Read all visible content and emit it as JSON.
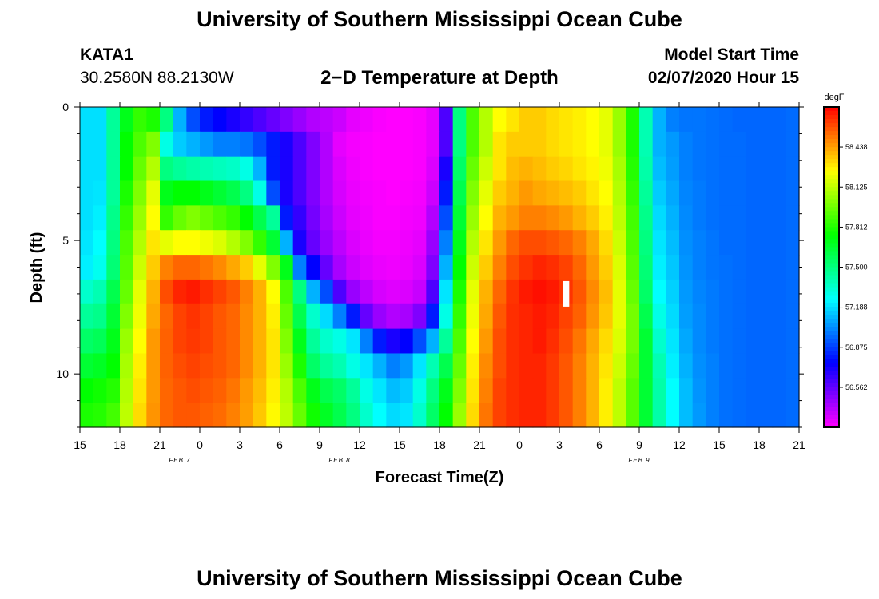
{
  "header": {
    "title": "University of Southern Mississippi Ocean Cube",
    "station_id": "KATA1",
    "station_coords": "30.2580N 88.2130W",
    "subtitle": "2−D Temperature at Depth",
    "model_start_label": "Model Start Time",
    "model_start_value": "02/07/2020 Hour 15"
  },
  "footer": {
    "title": "University of Southern Mississippi Ocean Cube"
  },
  "chart_data": {
    "type": "heatmap",
    "title": "2−D Temperature at Depth",
    "xlabel": "Forecast Time(Z)",
    "ylabel": "Depth (ft)",
    "x_tick_labels": [
      "15",
      "18",
      "21",
      "0",
      "3",
      "6",
      "9",
      "12",
      "15",
      "18",
      "21",
      "0",
      "3",
      "6",
      "9",
      "12",
      "15",
      "18",
      "21"
    ],
    "date_labels": [
      {
        "text": "FEB 7",
        "tick_index": 2.5
      },
      {
        "text": "FEB 8",
        "tick_index": 6.5
      },
      {
        "text": "FEB 9",
        "tick_index": 14
      }
    ],
    "x_range_hours": [
      0,
      54
    ],
    "y_ticks": [
      0,
      5,
      10
    ],
    "y_range_ft": [
      0,
      12
    ],
    "colorbar": {
      "unit": "degF",
      "min": 56.25,
      "max": 58.75,
      "tick_values": [
        58.438,
        58.125,
        57.812,
        57.5,
        57.188,
        56.875,
        56.562
      ],
      "tick_labels": [
        "58.438",
        "58.125",
        "57.812",
        "57.500",
        "57.188",
        "56.875",
        "56.562"
      ]
    },
    "annotation": {
      "type": "marker",
      "x_hours": 36.5,
      "depth_ft": 7.0,
      "color": "#ffffff"
    },
    "field_description": "Approximate temperature field (degF) sampled on a grid of forecast hours vs depth levels 0..12 ft",
    "series_hours": [
      0,
      1,
      2,
      3,
      4,
      5,
      6,
      7,
      8,
      9,
      10,
      11,
      12,
      13,
      14,
      15,
      16,
      17,
      18,
      19,
      20,
      21,
      22,
      23,
      24,
      25,
      26,
      27,
      28,
      29,
      30,
      31,
      32,
      33,
      34,
      35,
      36,
      37,
      38,
      39,
      40,
      41,
      42,
      43,
      44,
      45,
      46,
      47,
      48,
      49,
      50,
      51,
      52,
      53
    ],
    "depth_levels_ft": [
      0,
      1,
      2,
      3,
      4,
      5,
      6,
      7,
      8,
      9,
      10,
      11,
      12
    ],
    "values": [
      [
        57.19,
        57.19,
        57.45,
        57.7,
        57.85,
        57.8,
        57.5,
        57.1,
        56.9,
        56.8,
        56.75,
        56.7,
        56.65,
        56.6,
        56.55,
        56.5,
        56.45,
        56.4,
        56.38,
        56.35,
        56.3,
        56.28,
        56.26,
        56.25,
        56.25,
        56.26,
        56.3,
        56.6,
        57.5,
        57.9,
        58.1,
        58.25,
        58.3,
        58.35,
        58.35,
        58.32,
        58.3,
        58.28,
        58.25,
        58.2,
        58.05,
        57.8,
        57.4,
        57.1,
        57.0,
        56.98,
        56.98,
        56.97,
        56.96,
        56.95,
        56.95,
        56.95,
        56.95,
        56.96
      ],
      [
        57.19,
        57.19,
        57.45,
        57.75,
        57.9,
        58.0,
        57.3,
        57.15,
        57.1,
        57.05,
        57.0,
        57.0,
        56.98,
        56.9,
        56.8,
        56.7,
        56.6,
        56.5,
        56.4,
        56.3,
        56.27,
        56.26,
        56.25,
        56.25,
        56.25,
        56.26,
        56.3,
        56.6,
        57.5,
        57.9,
        58.1,
        58.3,
        58.35,
        58.35,
        58.35,
        58.32,
        58.3,
        58.28,
        58.25,
        58.2,
        58.05,
        57.8,
        57.4,
        57.1,
        57.05,
        57.0,
        56.98,
        56.97,
        56.96,
        56.96,
        56.95,
        56.95,
        56.95,
        56.96
      ],
      [
        57.19,
        57.19,
        57.45,
        57.75,
        57.95,
        58.1,
        57.5,
        57.45,
        57.42,
        57.4,
        57.38,
        57.36,
        57.3,
        57.1,
        56.8,
        56.7,
        56.6,
        56.5,
        56.4,
        56.32,
        56.28,
        56.26,
        56.25,
        56.25,
        56.25,
        56.26,
        56.32,
        56.7,
        57.55,
        57.95,
        58.15,
        58.3,
        58.38,
        58.4,
        58.38,
        58.35,
        58.33,
        58.3,
        58.27,
        58.22,
        58.08,
        57.82,
        57.42,
        57.12,
        57.06,
        57.0,
        56.98,
        56.97,
        56.96,
        56.96,
        56.95,
        56.95,
        56.95,
        56.96
      ],
      [
        57.19,
        57.2,
        57.45,
        57.8,
        58.0,
        58.2,
        57.7,
        57.75,
        57.75,
        57.7,
        57.65,
        57.6,
        57.5,
        57.3,
        56.9,
        56.7,
        56.6,
        56.5,
        56.4,
        56.33,
        56.29,
        56.27,
        56.26,
        56.25,
        56.26,
        56.27,
        56.35,
        56.8,
        57.6,
        58.0,
        58.2,
        58.35,
        58.4,
        58.45,
        58.42,
        58.4,
        58.38,
        58.35,
        58.3,
        58.25,
        58.1,
        57.85,
        57.45,
        57.15,
        57.08,
        57.01,
        56.99,
        56.97,
        56.96,
        56.96,
        56.95,
        56.95,
        56.95,
        56.96
      ],
      [
        57.19,
        57.22,
        57.48,
        57.85,
        58.05,
        58.25,
        57.85,
        57.95,
        58.0,
        57.95,
        57.9,
        57.85,
        57.75,
        57.6,
        57.45,
        56.8,
        56.65,
        56.52,
        56.42,
        56.35,
        56.3,
        56.28,
        56.26,
        56.26,
        56.27,
        56.28,
        56.4,
        56.9,
        57.65,
        58.05,
        58.25,
        58.4,
        58.45,
        58.5,
        58.5,
        58.48,
        58.45,
        58.4,
        58.35,
        58.28,
        58.12,
        57.88,
        57.48,
        57.18,
        57.1,
        57.02,
        56.99,
        56.97,
        56.96,
        56.96,
        56.95,
        56.95,
        56.95,
        56.96
      ],
      [
        57.2,
        57.25,
        57.5,
        57.9,
        58.1,
        58.3,
        58.2,
        58.25,
        58.25,
        58.22,
        58.18,
        58.1,
        58.0,
        57.85,
        57.65,
        57.1,
        56.7,
        56.55,
        56.45,
        56.38,
        56.32,
        56.29,
        56.27,
        56.27,
        56.28,
        56.3,
        56.45,
        57.0,
        57.7,
        58.1,
        58.3,
        58.45,
        58.55,
        58.6,
        58.6,
        58.58,
        58.55,
        58.5,
        58.42,
        58.32,
        58.15,
        57.9,
        57.5,
        57.2,
        57.12,
        57.03,
        57.0,
        56.98,
        56.96,
        56.96,
        56.95,
        56.95,
        56.95,
        56.96
      ],
      [
        57.22,
        57.28,
        57.52,
        57.92,
        58.15,
        58.35,
        58.5,
        58.55,
        58.55,
        58.52,
        58.48,
        58.42,
        58.35,
        58.2,
        58.0,
        57.7,
        57.0,
        56.75,
        56.55,
        56.42,
        56.35,
        56.31,
        56.29,
        56.28,
        56.29,
        56.32,
        56.5,
        57.1,
        57.75,
        58.15,
        58.35,
        58.5,
        58.6,
        58.65,
        58.68,
        58.66,
        58.62,
        58.55,
        58.45,
        58.35,
        58.18,
        57.92,
        57.52,
        57.22,
        57.14,
        57.04,
        57.0,
        56.98,
        56.97,
        56.96,
        56.95,
        56.95,
        56.95,
        56.96
      ],
      [
        57.35,
        57.4,
        57.6,
        57.95,
        58.2,
        58.4,
        58.6,
        58.68,
        58.7,
        58.66,
        58.62,
        58.58,
        58.5,
        58.4,
        58.25,
        57.9,
        57.5,
        57.1,
        56.9,
        56.6,
        56.45,
        56.38,
        56.33,
        56.31,
        56.32,
        56.36,
        56.6,
        57.2,
        57.8,
        58.2,
        58.4,
        58.55,
        58.65,
        58.7,
        58.72,
        58.7,
        58.65,
        58.58,
        58.48,
        58.38,
        58.2,
        57.95,
        57.55,
        57.25,
        57.16,
        57.05,
        57.01,
        56.99,
        56.97,
        56.96,
        56.95,
        56.95,
        56.95,
        56.96
      ],
      [
        57.45,
        57.48,
        57.65,
        58.0,
        58.22,
        58.42,
        58.55,
        58.62,
        58.65,
        58.62,
        58.58,
        58.55,
        58.48,
        58.4,
        58.28,
        57.95,
        57.6,
        57.35,
        57.18,
        57.0,
        56.8,
        56.55,
        56.45,
        56.4,
        56.42,
        56.5,
        56.8,
        57.3,
        57.85,
        58.22,
        58.42,
        58.58,
        58.66,
        58.68,
        58.7,
        58.68,
        58.62,
        58.56,
        58.46,
        58.36,
        58.2,
        57.98,
        57.6,
        57.3,
        57.18,
        57.06,
        57.02,
        56.99,
        56.97,
        56.96,
        56.95,
        56.95,
        56.95,
        56.96
      ],
      [
        57.55,
        57.58,
        57.7,
        58.05,
        58.25,
        58.45,
        58.56,
        58.62,
        58.64,
        58.62,
        58.58,
        58.55,
        58.48,
        58.4,
        58.3,
        58.0,
        57.7,
        57.45,
        57.35,
        57.3,
        57.2,
        57.0,
        56.8,
        56.7,
        56.75,
        56.9,
        57.1,
        57.45,
        57.9,
        58.25,
        58.45,
        58.6,
        58.66,
        58.68,
        58.7,
        58.66,
        58.6,
        58.52,
        58.42,
        58.32,
        58.18,
        57.98,
        57.65,
        57.35,
        57.2,
        57.08,
        57.02,
        56.99,
        56.97,
        56.96,
        56.95,
        56.95,
        56.95,
        56.96
      ],
      [
        57.65,
        57.68,
        57.75,
        58.08,
        58.28,
        58.45,
        58.56,
        58.6,
        58.62,
        58.6,
        58.58,
        58.55,
        58.48,
        58.4,
        58.3,
        58.05,
        57.8,
        57.55,
        57.45,
        57.4,
        57.3,
        57.2,
        57.1,
        57.0,
        57.05,
        57.2,
        57.4,
        57.6,
        57.95,
        58.28,
        58.48,
        58.6,
        58.66,
        58.68,
        58.68,
        58.64,
        58.58,
        58.5,
        58.4,
        58.3,
        58.15,
        57.95,
        57.65,
        57.4,
        57.22,
        57.1,
        57.03,
        57.0,
        56.97,
        56.96,
        56.95,
        56.95,
        56.95,
        56.96
      ],
      [
        57.75,
        57.78,
        57.82,
        58.1,
        58.3,
        58.45,
        58.55,
        58.58,
        58.6,
        58.58,
        58.56,
        58.52,
        58.45,
        58.38,
        58.28,
        58.1,
        57.9,
        57.7,
        57.6,
        57.55,
        57.45,
        57.3,
        57.2,
        57.12,
        57.15,
        57.3,
        57.5,
        57.7,
        58.0,
        58.3,
        58.5,
        58.62,
        58.66,
        58.68,
        58.68,
        58.64,
        58.58,
        58.5,
        58.4,
        58.28,
        58.12,
        57.92,
        57.65,
        57.42,
        57.25,
        57.12,
        57.04,
        57.0,
        56.97,
        56.96,
        56.95,
        56.95,
        56.95,
        56.96
      ],
      [
        57.8,
        57.82,
        57.88,
        58.12,
        58.32,
        58.46,
        58.55,
        58.58,
        58.58,
        58.56,
        58.54,
        58.5,
        58.44,
        58.36,
        58.26,
        58.12,
        57.95,
        57.78,
        57.68,
        57.6,
        57.5,
        57.35,
        57.25,
        57.18,
        57.2,
        57.35,
        57.55,
        57.75,
        58.05,
        58.32,
        58.52,
        58.62,
        58.66,
        58.68,
        58.68,
        58.64,
        58.58,
        58.5,
        58.4,
        58.28,
        58.12,
        57.92,
        57.65,
        57.42,
        57.25,
        57.12,
        57.05,
        57.0,
        56.97,
        56.96,
        56.95,
        56.95,
        56.95,
        56.96
      ]
    ]
  }
}
